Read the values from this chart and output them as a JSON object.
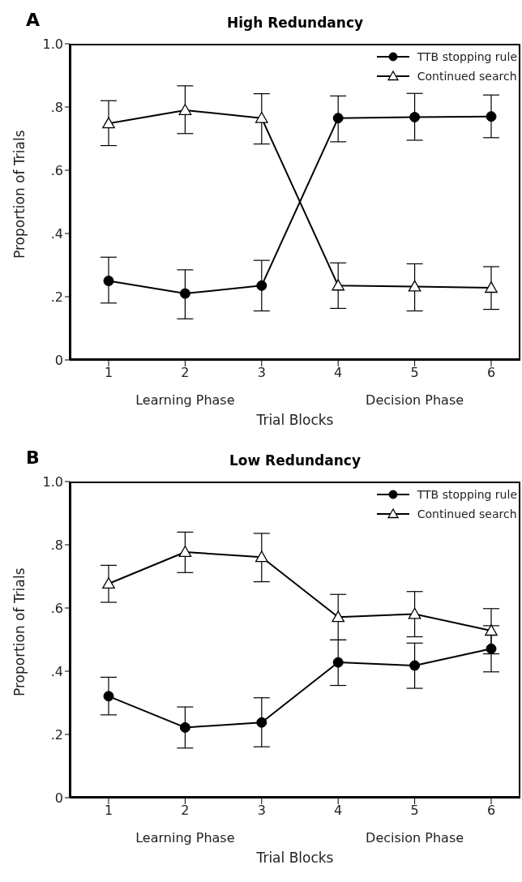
{
  "chart_data": [
    {
      "type": "line",
      "title": "High Redundancy",
      "xlabel": "Trial Blocks",
      "ylabel": "Proportion of Trials",
      "annotations": [
        "A",
        "Learning Phase",
        "Decision Phase"
      ],
      "categories": [
        "1",
        "2",
        "3",
        "4",
        "5",
        "6"
      ],
      "ylim": [
        0,
        1
      ],
      "yticks": [
        0,
        {
          "value": 0.2,
          "label": ".2"
        },
        {
          "value": 0.4,
          "label": ".4"
        },
        {
          "value": 0.6,
          "label": ".6"
        },
        {
          "value": 0.8,
          "label": ".8"
        },
        {
          "value": 1,
          "label": "1.0"
        }
      ],
      "legend": "top right",
      "line_style": "solid",
      "series": [
        {
          "name": "TTB stopping rule",
          "color": "#000000",
          "marker": "circle",
          "values": [
            0.25,
            0.21,
            0.235,
            0.765,
            0.768,
            0.77
          ],
          "errors": [
            [
              0.18,
              0.325
            ],
            [
              0.13,
              0.285
            ],
            [
              0.155,
              0.315
            ],
            [
              0.69,
              0.835
            ],
            [
              0.695,
              0.843
            ],
            [
              0.703,
              0.838
            ]
          ]
        },
        {
          "name": "Continued search",
          "color": "#000000",
          "marker": "triangle",
          "values": [
            0.748,
            0.79,
            0.765,
            0.235,
            0.232,
            0.228
          ],
          "errors": [
            [
              0.678,
              0.82
            ],
            [
              0.716,
              0.867
            ],
            [
              0.683,
              0.842
            ],
            [
              0.163,
              0.307
            ],
            [
              0.155,
              0.304
            ],
            [
              0.16,
              0.295
            ]
          ]
        }
      ]
    },
    {
      "type": "line",
      "title": "Low Redundancy",
      "xlabel": "Trial Blocks",
      "ylabel": "Proportion of Trials",
      "annotations": [
        "B",
        "Learning Phase",
        "Decision Phase"
      ],
      "categories": [
        "1",
        "2",
        "3",
        "4",
        "5",
        "6"
      ],
      "ylim": [
        0,
        1
      ],
      "yticks": [
        0,
        {
          "value": 0.2,
          "label": ".2"
        },
        {
          "value": 0.4,
          "label": ".4"
        },
        {
          "value": 0.6,
          "label": ".6"
        },
        {
          "value": 0.8,
          "label": ".8"
        },
        {
          "value": 1,
          "label": "1.0"
        }
      ],
      "legend": "top right",
      "line_style": "solid",
      "series": [
        {
          "name": "TTB stopping rule",
          "color": "#000000",
          "marker": "circle",
          "values": [
            0.321,
            0.222,
            0.238,
            0.428,
            0.418,
            0.471
          ],
          "errors": [
            [
              0.262,
              0.381
            ],
            [
              0.157,
              0.287
            ],
            [
              0.161,
              0.316
            ],
            [
              0.355,
              0.499
            ],
            [
              0.346,
              0.489
            ],
            [
              0.398,
              0.544
            ]
          ]
        },
        {
          "name": "Continued search",
          "color": "#000000",
          "marker": "triangle",
          "values": [
            0.677,
            0.777,
            0.761,
            0.571,
            0.581,
            0.528
          ],
          "errors": [
            [
              0.618,
              0.735
            ],
            [
              0.712,
              0.84
            ],
            [
              0.683,
              0.836
            ],
            [
              0.499,
              0.643
            ],
            [
              0.509,
              0.652
            ],
            [
              0.455,
              0.598
            ]
          ]
        }
      ]
    }
  ]
}
